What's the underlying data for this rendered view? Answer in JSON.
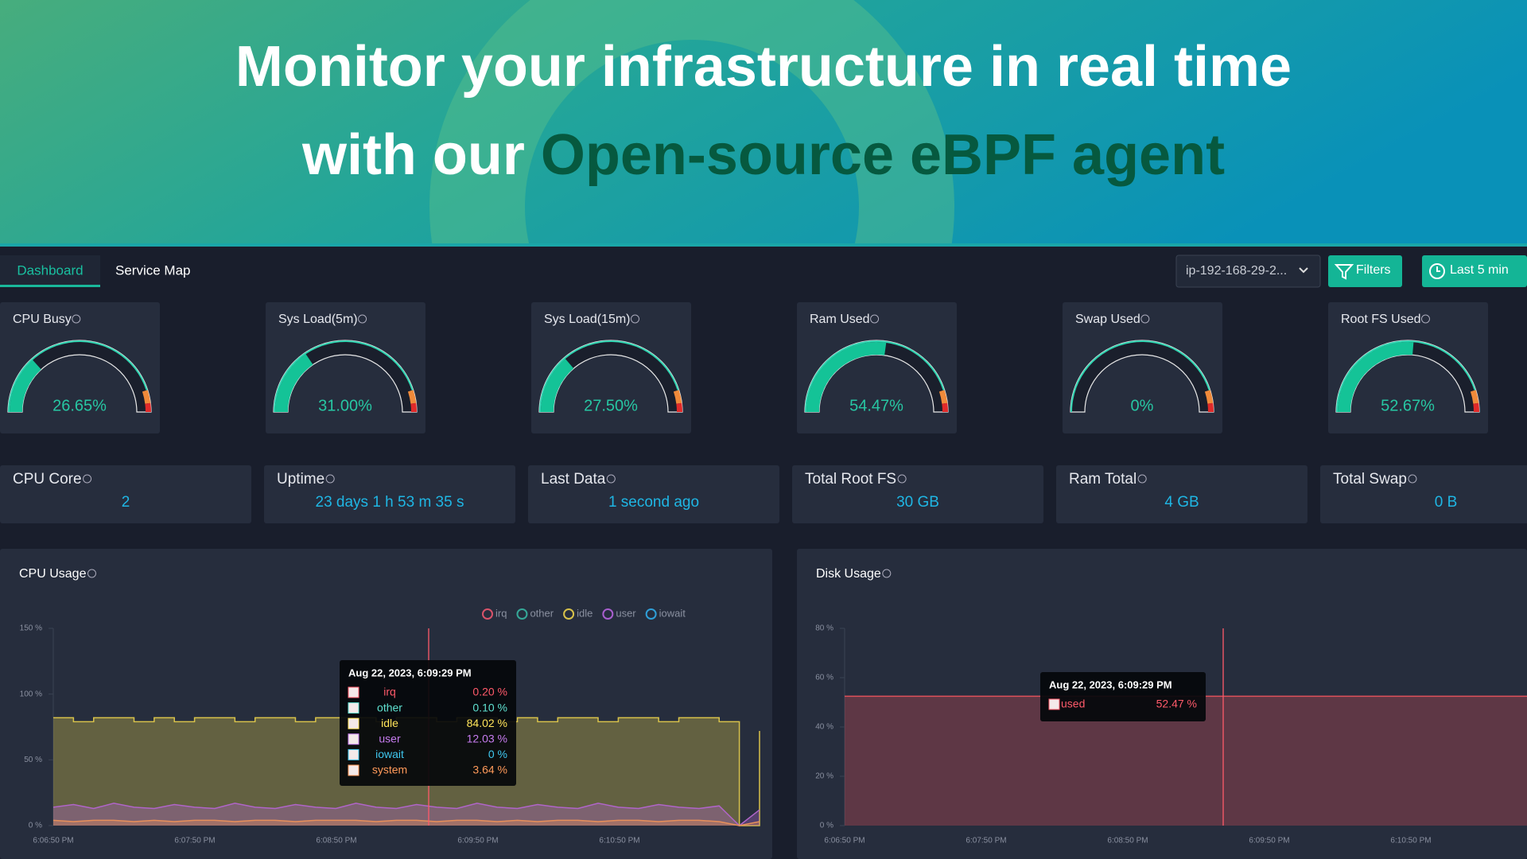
{
  "headline": {
    "line1": "Monitor your infrastructure in real time",
    "line2_prefix": "with our",
    "line2_highlight": "Open-source eBPF agent"
  },
  "tabs": [
    "Dashboard",
    "Service Map"
  ],
  "host_selector": "ip-192-168-29-2...",
  "buttons": [
    "Filters",
    "Last 5 min"
  ],
  "gauge_lim": [
    0,
    100
  ],
  "gauges": [
    {
      "label": "CPU Busy",
      "value": 26.65,
      "value_label": "26.65%"
    },
    {
      "label": "Sys Load(5m)",
      "value": 31.0,
      "value_label": "31.00%"
    },
    {
      "label": "Sys Load(15m)",
      "value": 27.5,
      "value_label": "27.50%"
    },
    {
      "label": "Ram Used",
      "value": 54.47,
      "value_label": "54.47%"
    },
    {
      "label": "Swap Used",
      "value": 0,
      "value_label": "0%"
    },
    {
      "label": "Root FS Used",
      "value": 52.67,
      "value_label": "52.67%"
    }
  ],
  "stats": [
    {
      "label": "CPU Core",
      "value": "2"
    },
    {
      "label": "Uptime",
      "value": "23 days 1 h 53 m 35 s"
    },
    {
      "label": "Last Data",
      "value": "1 second ago"
    },
    {
      "label": "Total Root FS",
      "value": "30 GB"
    },
    {
      "label": "Ram Total",
      "value": "4 GB"
    },
    {
      "label": "Total Swap",
      "value": "0 B"
    }
  ],
  "charts": [
    {
      "title": "CPU Usage",
      "legend": [
        {
          "name": "irq",
          "color": "#d9536a"
        },
        {
          "name": "other",
          "color": "#35a898"
        },
        {
          "name": "idle",
          "color": "#d8c24a"
        },
        {
          "name": "user",
          "color": "#a95fcf"
        },
        {
          "name": "iowait",
          "color": "#2f9fd8"
        }
      ],
      "ylim": [
        0,
        150
      ],
      "yticks": [
        {
          "value": 0,
          "label": "0 %"
        },
        {
          "value": 50,
          "label": "50 %"
        },
        {
          "value": 100,
          "label": "100 %"
        },
        {
          "value": 150,
          "label": "150 %"
        }
      ],
      "xticks": [
        "6:06:50 PM",
        "6:07:50 PM",
        "6:08:50 PM",
        "6:09:50 PM",
        "6:10:50 PM"
      ],
      "series": [
        {
          "color": "#d8c24a",
          "values": [
            82,
            79,
            82,
            82,
            79,
            82,
            79,
            82,
            82,
            79,
            82,
            82,
            79,
            82,
            82,
            82,
            79,
            82,
            82,
            79,
            82,
            82,
            79,
            82,
            79,
            82,
            82,
            79,
            82,
            82,
            79,
            82,
            82,
            79,
            0,
            72
          ]
        },
        {
          "color": "#b065c8",
          "values": [
            14,
            16,
            13,
            17,
            14,
            13,
            16,
            14,
            13,
            17,
            14,
            13,
            16,
            14,
            13,
            17,
            14,
            13,
            16,
            14,
            13,
            17,
            14,
            13,
            16,
            14,
            13,
            17,
            14,
            13,
            16,
            14,
            13,
            15,
            0,
            12
          ]
        },
        {
          "color": "#e8905a",
          "values": [
            4,
            3,
            4,
            4,
            3,
            4,
            3,
            4,
            4,
            3,
            4,
            4,
            3,
            4,
            4,
            4,
            3,
            4,
            4,
            3,
            4,
            4,
            3,
            4,
            3,
            4,
            4,
            3,
            4,
            4,
            3,
            4,
            4,
            3,
            0,
            3
          ]
        }
      ],
      "tooltip": {
        "time": "Aug 22, 2023, 6:09:29 PM",
        "rows": [
          {
            "name": "irq",
            "value": "0.20 %",
            "color": "#ff5a6a"
          },
          {
            "name": "other",
            "value": "0.10 %",
            "color": "#5fe0d0"
          },
          {
            "name": "idle",
            "value": "84.02 %",
            "color": "#ffe45a"
          },
          {
            "name": "user",
            "value": "12.03 %",
            "color": "#c77cf0"
          },
          {
            "name": "iowait",
            "value": "0 %",
            "color": "#3fc8f0"
          },
          {
            "name": "system",
            "value": "3.64 %",
            "color": "#ff9a5a"
          }
        ]
      }
    },
    {
      "title": "Disk Usage",
      "ylim": [
        0,
        80
      ],
      "yticks": [
        {
          "value": 0,
          "label": "0 %"
        },
        {
          "value": 20,
          "label": "20 %"
        },
        {
          "value": 40,
          "label": "40 %"
        },
        {
          "value": 60,
          "label": "60 %"
        },
        {
          "value": 80,
          "label": "80 %"
        }
      ],
      "xticks": [
        "6:06:50 PM",
        "6:07:50 PM",
        "6:08:50 PM",
        "6:09:50 PM",
        "6:10:50 PM"
      ],
      "series": [
        {
          "color": "#e0505a",
          "values": [
            52.47,
            52.47,
            52.47,
            52.47,
            52.47,
            52.47,
            52.47,
            52.47,
            52.47,
            52.47
          ]
        }
      ],
      "tooltip": {
        "time": "Aug 22, 2023, 6:09:29 PM",
        "rows": [
          {
            "name": "used",
            "value": "52.47 %",
            "color": "#ff5a6a"
          }
        ]
      }
    }
  ]
}
